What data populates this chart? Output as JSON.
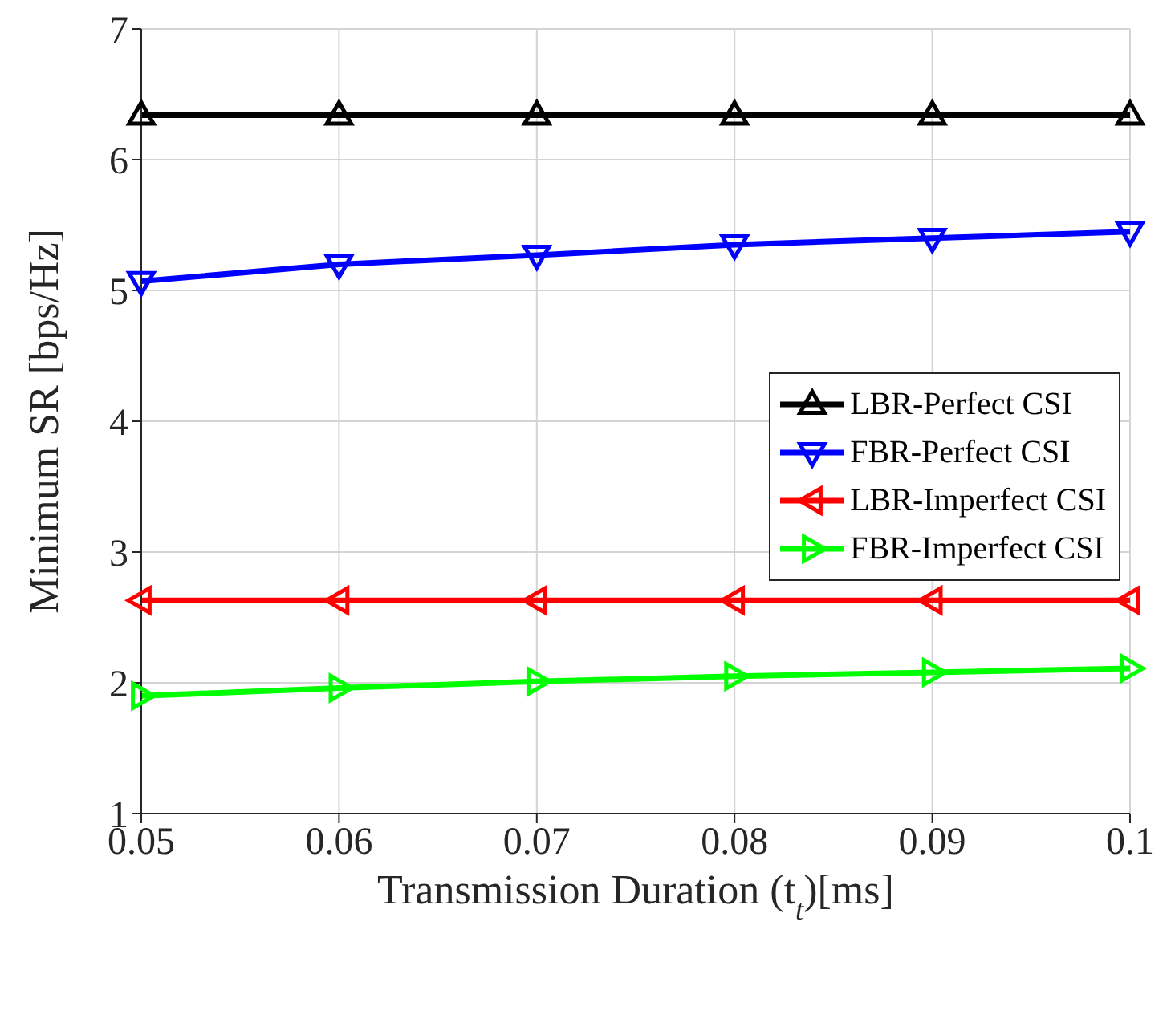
{
  "chart_data": {
    "type": "line",
    "xlabel": "Transmission Duration (t$_{t}$)[ms]",
    "ylabel": "Minimum SR [bps/Hz]",
    "x": [
      0.05,
      0.06,
      0.07,
      0.08,
      0.09,
      0.1
    ],
    "series": [
      {
        "name": "LBR-Perfect CSI",
        "color": "#000000",
        "values": [
          6.34,
          6.34,
          6.34,
          6.34,
          6.34,
          6.34
        ]
      },
      {
        "name": "FBR-Perfect CSI",
        "color": "#0000ff",
        "values": [
          5.07,
          5.2,
          5.27,
          5.35,
          5.4,
          5.45
        ]
      },
      {
        "name": "LBR-Imperfect CSI",
        "color": "#ff0000",
        "values": [
          2.63,
          2.63,
          2.63,
          2.63,
          2.63,
          2.63
        ]
      },
      {
        "name": "FBR-Imperfect CSI",
        "color": "#00ff00",
        "values": [
          1.9,
          1.96,
          2.01,
          2.05,
          2.08,
          2.11
        ]
      }
    ],
    "xlim": [
      0.05,
      0.1
    ],
    "xticks": [
      0.05,
      0.06,
      0.07,
      0.08,
      0.09,
      0.1
    ],
    "ylim": [
      1,
      7
    ],
    "yticks": [
      1,
      2,
      3,
      4,
      5,
      6,
      7
    ],
    "grid": true,
    "legend": "right",
    "marker": "triangle",
    "line_style": "solid"
  }
}
